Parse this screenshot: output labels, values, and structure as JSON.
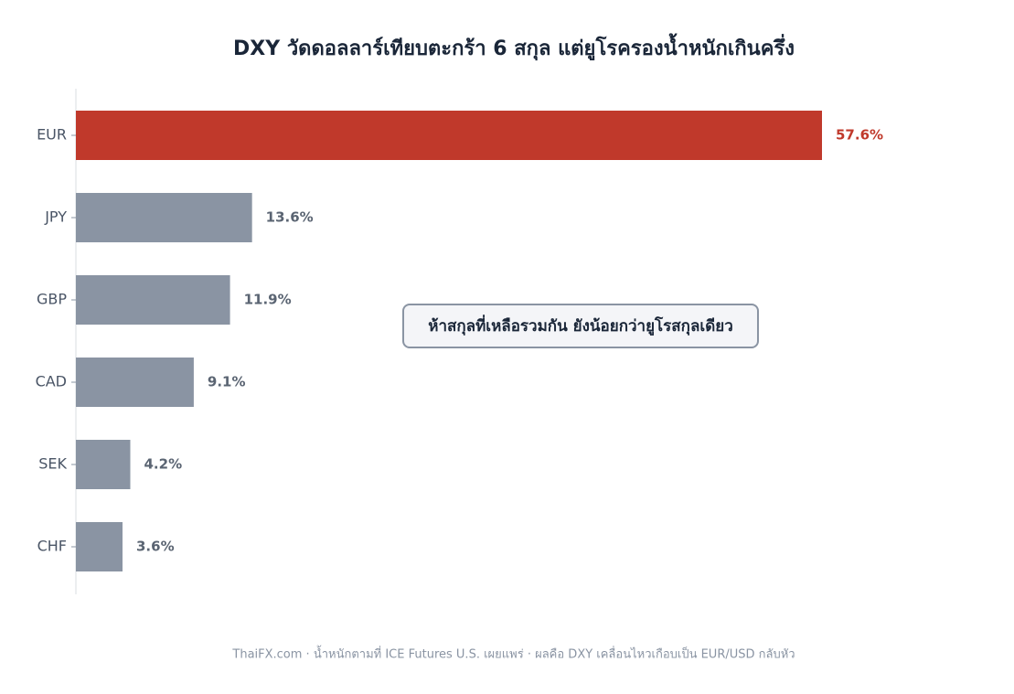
{
  "chart_data": {
    "type": "barh",
    "title": "DXY วัดดอลลาร์เทียบตะกร้า 6 สกุล แต่ยูโรครองน้ำหนักเกินครึ่ง",
    "categories": [
      "EUR",
      "JPY",
      "GBP",
      "CAD",
      "SEK",
      "CHF"
    ],
    "values": [
      57.6,
      13.6,
      11.9,
      9.1,
      4.2,
      3.6
    ],
    "value_labels": [
      "57.6%",
      "13.6%",
      "11.9%",
      "9.1%",
      "4.2%",
      "3.6%"
    ],
    "colors": [
      "#c0392b",
      "#8a94a3",
      "#8a94a3",
      "#8a94a3",
      "#8a94a3",
      "#8a94a3"
    ],
    "xlim": [
      0,
      66
    ],
    "annotation": "ห้าสกุลที่เหลือรวมกัน ยังน้อยกว่ายูโรสกุลเดียว",
    "footer": "ThaiFX.com  ·  น้ำหนักตามที่ ICE Futures U.S. เผยแพร่  ·  ผลคือ DXY เคลื่อนไหวเกือบเป็น EUR/USD กลับหัว"
  }
}
